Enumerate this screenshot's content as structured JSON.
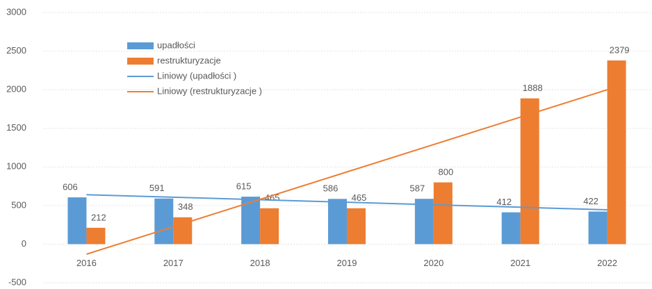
{
  "chart_data": {
    "type": "bar",
    "categories": [
      "2016",
      "2017",
      "2018",
      "2019",
      "2020",
      "2021",
      "2022"
    ],
    "series": [
      {
        "name": "upadłości",
        "color": "#5b9bd5",
        "values": [
          606,
          591,
          615,
          586,
          587,
          412,
          422
        ]
      },
      {
        "name": "restrukturyzacje",
        "color": "#ed7d31",
        "values": [
          212,
          348,
          465,
          465,
          800,
          1888,
          2379
        ]
      }
    ],
    "trendlines": [
      {
        "name": "Liniowy (upadłości )",
        "color": "#5b9bd5",
        "values": [
          640,
          608,
          575,
          543,
          510,
          478,
          445
        ]
      },
      {
        "name": "Liniowy (restrukturyzacje )",
        "color": "#ed7d31",
        "values": [
          -130,
          225,
          580,
          935,
          1290,
          1645,
          2000
        ]
      }
    ],
    "ylim": [
      -500,
      3000
    ],
    "yticks": [
      -500,
      0,
      500,
      1000,
      1500,
      2000,
      2500,
      3000
    ],
    "grid": true
  }
}
